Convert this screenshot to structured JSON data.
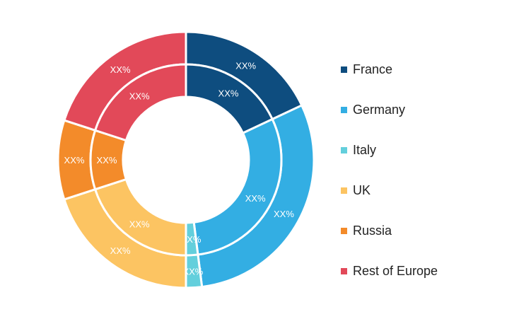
{
  "chart_data": {
    "type": "pie",
    "title": "",
    "categories": [
      "France",
      "Germany",
      "Italy",
      "UK",
      "Russia",
      "Rest of Europe"
    ],
    "colors": [
      "#0e4d7f",
      "#33aee3",
      "#63cfdc",
      "#fcc462",
      "#f38b2a",
      "#e24959"
    ],
    "series": [
      {
        "ring": "outer",
        "values": [
          18,
          30,
          2,
          20,
          10,
          20
        ],
        "labels": [
          "XX%",
          "XX%",
          "XX%",
          "XX%",
          "XX%",
          "XX%"
        ]
      },
      {
        "ring": "inner",
        "values": [
          18,
          30,
          2,
          20,
          10,
          20
        ],
        "labels": [
          "XX%",
          "XX%",
          "XX%",
          "XX%",
          "XX%",
          "XX%"
        ]
      }
    ],
    "legend": {
      "position": "right",
      "entries": [
        "France",
        "Germany",
        "Italy",
        "UK",
        "Russia",
        "Rest of Europe"
      ]
    }
  }
}
